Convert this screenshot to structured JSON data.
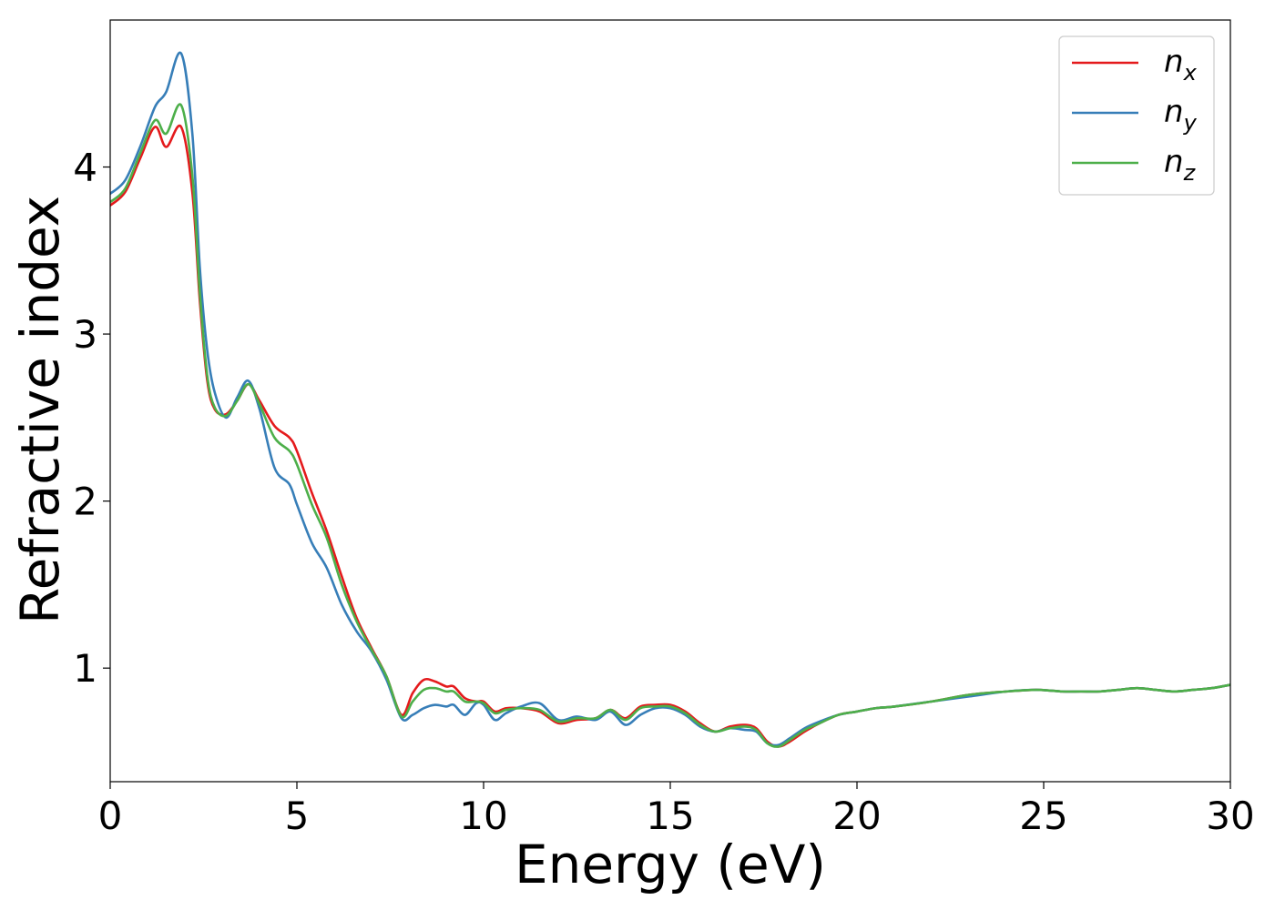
{
  "chart_data": {
    "type": "line",
    "xlabel": "Energy (eV)",
    "ylabel": "Refractive index",
    "xlim": [
      0,
      30
    ],
    "ylim": [
      0.32,
      4.88
    ],
    "x_ticks": [
      "0",
      "5",
      "10",
      "15",
      "20",
      "25",
      "30"
    ],
    "y_ticks": [
      "1",
      "2",
      "3",
      "4"
    ],
    "grid": false,
    "legend_position": "top-right",
    "series": [
      {
        "name": "n",
        "subscript": "x",
        "color": "#e41a1c",
        "x": [
          0,
          0.4,
          0.8,
          1.2,
          1.5,
          1.9,
          2.2,
          2.4,
          2.6,
          2.8,
          3.1,
          3.4,
          3.7,
          4.0,
          4.4,
          4.8,
          5.0,
          5.4,
          5.8,
          6.2,
          6.6,
          7.0,
          7.4,
          7.8,
          8.1,
          8.4,
          8.7,
          9.0,
          9.2,
          9.5,
          9.8,
          10.0,
          10.3,
          10.6,
          11.0,
          11.5,
          12.0,
          12.5,
          13.0,
          13.4,
          13.8,
          14.2,
          14.6,
          15.0,
          15.4,
          15.8,
          16.2,
          16.6,
          17.0,
          17.3,
          17.6,
          17.9,
          18.2,
          18.6,
          19.0,
          19.5,
          20.0,
          20.5,
          21.0,
          22.0,
          23.0,
          24.0,
          24.8,
          25.5,
          26.0,
          26.5,
          27.0,
          27.5,
          28.0,
          28.5,
          29.0,
          29.5,
          30.0
        ],
        "y": [
          3.77,
          3.85,
          4.05,
          4.24,
          4.12,
          4.24,
          3.85,
          3.2,
          2.72,
          2.55,
          2.52,
          2.6,
          2.7,
          2.6,
          2.45,
          2.38,
          2.3,
          2.05,
          1.82,
          1.55,
          1.3,
          1.12,
          0.95,
          0.72,
          0.85,
          0.93,
          0.92,
          0.89,
          0.89,
          0.82,
          0.8,
          0.8,
          0.74,
          0.76,
          0.76,
          0.74,
          0.67,
          0.69,
          0.7,
          0.75,
          0.7,
          0.77,
          0.78,
          0.78,
          0.74,
          0.67,
          0.62,
          0.65,
          0.66,
          0.64,
          0.56,
          0.53,
          0.56,
          0.62,
          0.67,
          0.72,
          0.74,
          0.76,
          0.77,
          0.8,
          0.84,
          0.86,
          0.87,
          0.86,
          0.86,
          0.86,
          0.87,
          0.88,
          0.87,
          0.86,
          0.87,
          0.88,
          0.9
        ]
      },
      {
        "name": "n",
        "subscript": "y",
        "color": "#377eb8",
        "x": [
          0,
          0.4,
          0.8,
          1.2,
          1.5,
          1.9,
          2.2,
          2.4,
          2.6,
          2.8,
          3.1,
          3.4,
          3.7,
          4.0,
          4.4,
          4.8,
          5.0,
          5.4,
          5.8,
          6.2,
          6.6,
          7.0,
          7.4,
          7.8,
          8.1,
          8.4,
          8.7,
          9.0,
          9.2,
          9.5,
          9.8,
          10.0,
          10.3,
          10.6,
          11.0,
          11.5,
          12.0,
          12.5,
          13.0,
          13.4,
          13.8,
          14.2,
          14.6,
          15.0,
          15.4,
          15.8,
          16.2,
          16.6,
          17.0,
          17.3,
          17.6,
          17.9,
          18.2,
          18.6,
          19.0,
          19.5,
          20.0,
          20.5,
          21.0,
          22.0,
          23.0,
          24.0,
          24.8,
          25.5,
          26.0,
          26.5,
          27.0,
          27.5,
          28.0,
          28.5,
          29.0,
          29.5,
          30.0
        ],
        "y": [
          3.84,
          3.92,
          4.12,
          4.36,
          4.45,
          4.68,
          4.2,
          3.4,
          2.9,
          2.65,
          2.5,
          2.62,
          2.72,
          2.55,
          2.2,
          2.1,
          1.98,
          1.75,
          1.6,
          1.38,
          1.22,
          1.1,
          0.93,
          0.7,
          0.72,
          0.76,
          0.78,
          0.77,
          0.78,
          0.72,
          0.79,
          0.78,
          0.69,
          0.73,
          0.77,
          0.79,
          0.69,
          0.71,
          0.69,
          0.74,
          0.66,
          0.72,
          0.76,
          0.76,
          0.72,
          0.65,
          0.62,
          0.64,
          0.63,
          0.62,
          0.55,
          0.54,
          0.58,
          0.64,
          0.68,
          0.72,
          0.74,
          0.76,
          0.77,
          0.8,
          0.83,
          0.86,
          0.87,
          0.86,
          0.86,
          0.86,
          0.87,
          0.88,
          0.87,
          0.86,
          0.87,
          0.88,
          0.9
        ]
      },
      {
        "name": "n",
        "subscript": "z",
        "color": "#4daf4a",
        "x": [
          0,
          0.4,
          0.8,
          1.2,
          1.5,
          1.9,
          2.2,
          2.4,
          2.6,
          2.8,
          3.1,
          3.4,
          3.7,
          4.0,
          4.4,
          4.8,
          5.0,
          5.4,
          5.8,
          6.2,
          6.6,
          7.0,
          7.4,
          7.8,
          8.1,
          8.4,
          8.7,
          9.0,
          9.2,
          9.5,
          9.8,
          10.0,
          10.3,
          10.6,
          11.0,
          11.5,
          12.0,
          12.5,
          13.0,
          13.4,
          13.8,
          14.2,
          14.6,
          15.0,
          15.4,
          15.8,
          16.2,
          16.6,
          17.0,
          17.3,
          17.6,
          17.9,
          18.2,
          18.6,
          19.0,
          19.5,
          20.0,
          20.5,
          21.0,
          22.0,
          23.0,
          24.0,
          24.8,
          25.5,
          26.0,
          26.5,
          27.0,
          27.5,
          28.0,
          28.5,
          29.0,
          29.5,
          30.0
        ],
        "y": [
          3.79,
          3.87,
          4.08,
          4.28,
          4.2,
          4.37,
          3.95,
          3.25,
          2.75,
          2.56,
          2.51,
          2.6,
          2.7,
          2.58,
          2.38,
          2.3,
          2.22,
          1.98,
          1.78,
          1.5,
          1.28,
          1.11,
          0.95,
          0.71,
          0.8,
          0.87,
          0.88,
          0.86,
          0.86,
          0.8,
          0.8,
          0.79,
          0.73,
          0.75,
          0.76,
          0.75,
          0.68,
          0.7,
          0.7,
          0.75,
          0.69,
          0.76,
          0.77,
          0.77,
          0.73,
          0.66,
          0.62,
          0.64,
          0.65,
          0.63,
          0.55,
          0.53,
          0.57,
          0.63,
          0.67,
          0.72,
          0.74,
          0.76,
          0.77,
          0.8,
          0.84,
          0.86,
          0.87,
          0.86,
          0.86,
          0.86,
          0.87,
          0.88,
          0.87,
          0.86,
          0.87,
          0.88,
          0.9
        ]
      }
    ]
  }
}
